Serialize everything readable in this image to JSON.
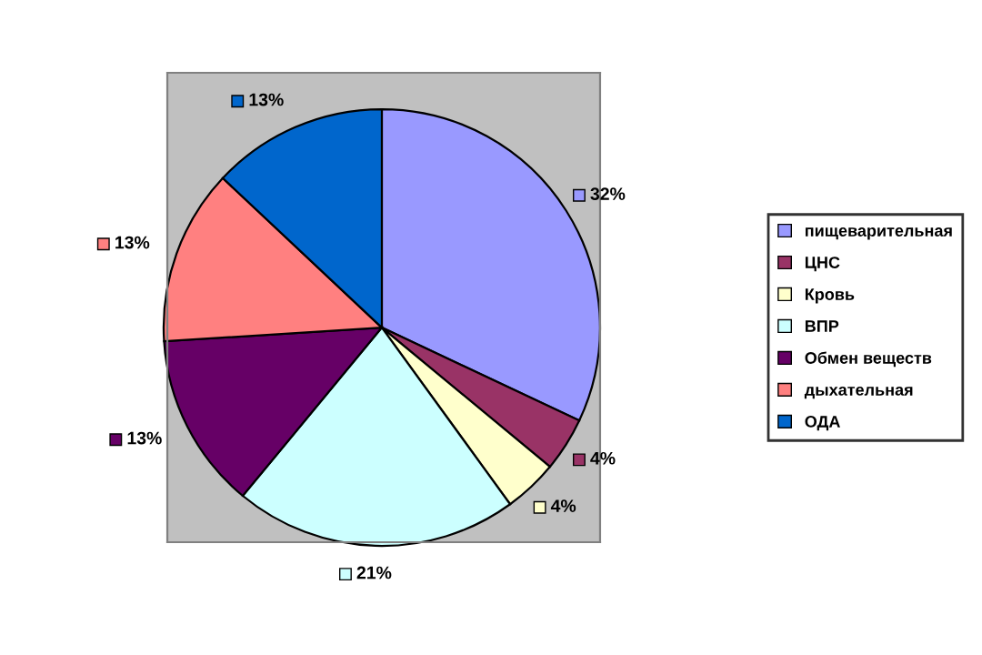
{
  "chart_data": {
    "type": "pie",
    "categories": [
      "пищеварительная",
      "ЦНС",
      "Кровь",
      "ВПР",
      "Обмен веществ",
      "дыхательная",
      "ОДА"
    ],
    "values": [
      32,
      4,
      4,
      21,
      13,
      13,
      13
    ],
    "colors": [
      "#9999ff",
      "#993366",
      "#ffffcc",
      "#ccffff",
      "#660066",
      "#ff8080",
      "#0066cc"
    ],
    "value_labels": [
      "32%",
      "4%",
      "4%",
      "21%",
      "13%",
      "13%",
      "13%"
    ],
    "legend": "right"
  }
}
